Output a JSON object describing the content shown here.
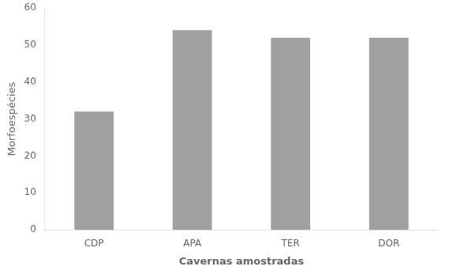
{
  "chart_data": {
    "type": "bar",
    "categories": [
      "CDP",
      "APA",
      "TER",
      "DOR"
    ],
    "values": [
      32,
      54,
      52,
      52
    ],
    "color": "#a0a0a0",
    "xlabel": "Cavernas amostradas",
    "ylabel": "Morfoespécies",
    "ylim": [
      0,
      60
    ],
    "yticks": [
      0,
      10,
      20,
      30,
      40,
      50,
      60
    ],
    "grid": false
  }
}
